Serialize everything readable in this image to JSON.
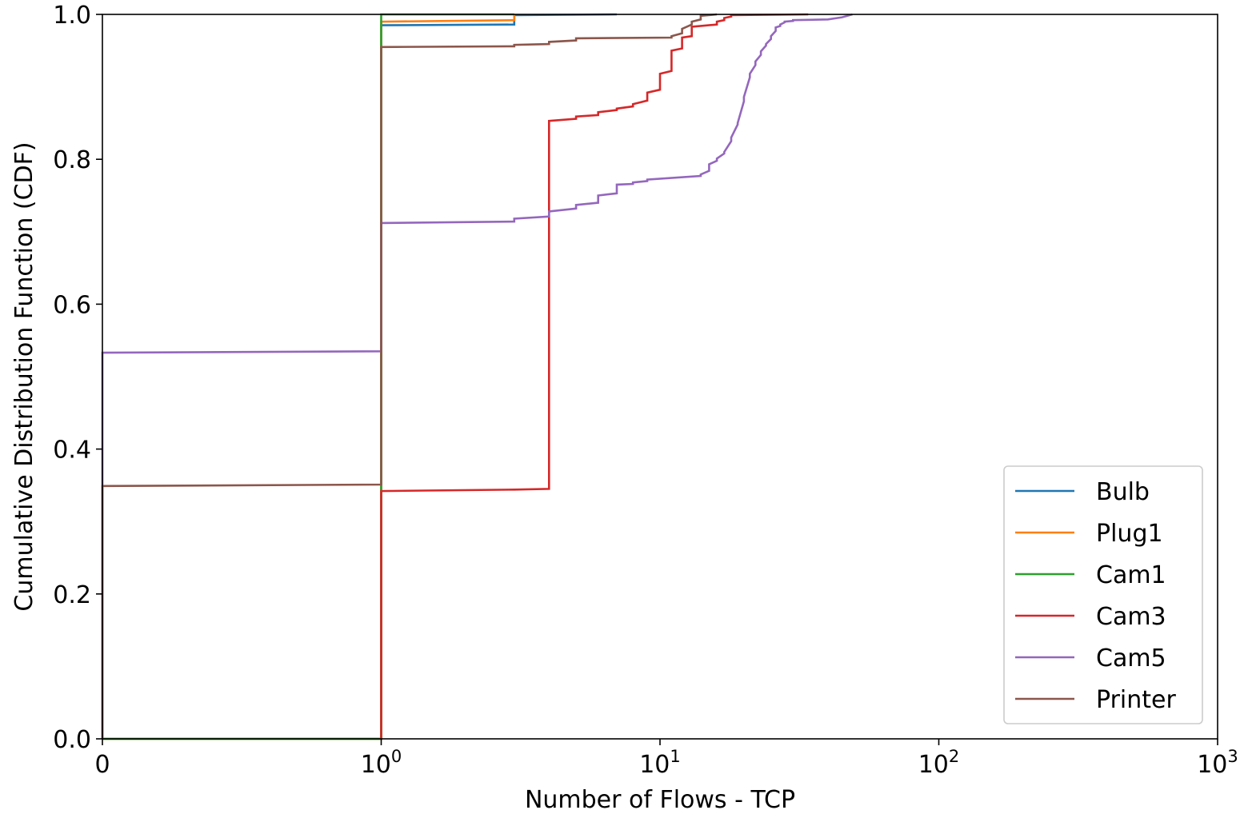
{
  "chart_data": {
    "type": "line",
    "title": "",
    "xlabel": "Number of Flows - TCP",
    "ylabel": "Cumulative Distribution Function (CDF)",
    "xscale": "symlog",
    "xlim": [
      0,
      1000
    ],
    "ylim": [
      0,
      1.0
    ],
    "xticks": [
      {
        "value": 0,
        "base": "0",
        "exp": ""
      },
      {
        "value": 1,
        "base": "10",
        "exp": "0"
      },
      {
        "value": 10,
        "base": "10",
        "exp": "1"
      },
      {
        "value": 100,
        "base": "10",
        "exp": "2"
      },
      {
        "value": 1000,
        "base": "10",
        "exp": "3"
      }
    ],
    "yticks": [
      "0.0",
      "0.2",
      "0.4",
      "0.6",
      "0.8",
      "1.0"
    ],
    "grid": false,
    "legend_position": "lower-right",
    "series": [
      {
        "name": "Bulb",
        "color": "#1f77b4",
        "x": [
          0,
          1,
          1,
          3,
          3,
          7
        ],
        "y": [
          0,
          0,
          0.985,
          0.986,
          0.999,
          1.0
        ]
      },
      {
        "name": "Plug1",
        "color": "#ff7f0e",
        "x": [
          0,
          1,
          1,
          3,
          3
        ],
        "y": [
          0,
          0,
          0.99,
          0.992,
          1.0
        ]
      },
      {
        "name": "Cam1",
        "color": "#2ca02c",
        "x": [
          0,
          1,
          1,
          3
        ],
        "y": [
          0,
          0,
          1.0,
          1.0
        ]
      },
      {
        "name": "Cam3",
        "color": "#d62728",
        "x": [
          1,
          1,
          3,
          4,
          4,
          5,
          5,
          6,
          6,
          7,
          7,
          8,
          8,
          9,
          9,
          10,
          10,
          11,
          11,
          12,
          12,
          13,
          13,
          16,
          16,
          17,
          17,
          18,
          18,
          34
        ],
        "y": [
          0,
          0.342,
          0.344,
          0.345,
          0.853,
          0.856,
          0.859,
          0.861,
          0.865,
          0.868,
          0.87,
          0.873,
          0.876,
          0.881,
          0.892,
          0.896,
          0.918,
          0.922,
          0.95,
          0.953,
          0.968,
          0.97,
          0.983,
          0.986,
          0.99,
          0.992,
          0.995,
          0.997,
          0.999,
          1.0
        ]
      },
      {
        "name": "Cam5",
        "color": "#9467bd",
        "x": [
          0,
          0,
          1,
          1,
          3,
          3,
          4,
          4,
          5,
          5,
          6,
          6,
          7,
          7,
          8,
          8,
          9,
          9,
          14,
          14,
          15,
          15,
          16,
          16,
          17,
          17,
          18,
          18,
          19,
          19,
          20,
          20,
          21,
          21,
          22,
          22,
          23,
          23,
          24,
          24,
          25,
          25,
          26,
          26,
          27,
          27,
          28,
          28,
          30,
          30,
          40,
          45,
          49
        ],
        "y": [
          0,
          0.533,
          0.535,
          0.712,
          0.714,
          0.718,
          0.721,
          0.728,
          0.732,
          0.737,
          0.74,
          0.75,
          0.753,
          0.765,
          0.766,
          0.768,
          0.77,
          0.772,
          0.777,
          0.779,
          0.784,
          0.793,
          0.798,
          0.801,
          0.808,
          0.81,
          0.825,
          0.83,
          0.848,
          0.85,
          0.88,
          0.886,
          0.913,
          0.918,
          0.93,
          0.935,
          0.944,
          0.949,
          0.957,
          0.959,
          0.966,
          0.97,
          0.977,
          0.982,
          0.984,
          0.986,
          0.989,
          0.99,
          0.991,
          0.992,
          0.993,
          0.996,
          1.0
        ]
      },
      {
        "name": "Printer",
        "color": "#8c564b",
        "x": [
          0,
          0,
          1,
          1,
          3,
          3,
          4,
          4,
          5,
          5,
          11,
          11,
          12,
          12,
          13,
          13,
          14,
          14,
          16
        ],
        "y": [
          0,
          0.349,
          0.351,
          0.955,
          0.956,
          0.958,
          0.959,
          0.962,
          0.964,
          0.967,
          0.968,
          0.97,
          0.974,
          0.98,
          0.986,
          0.99,
          0.993,
          0.998,
          1.0
        ]
      }
    ]
  }
}
